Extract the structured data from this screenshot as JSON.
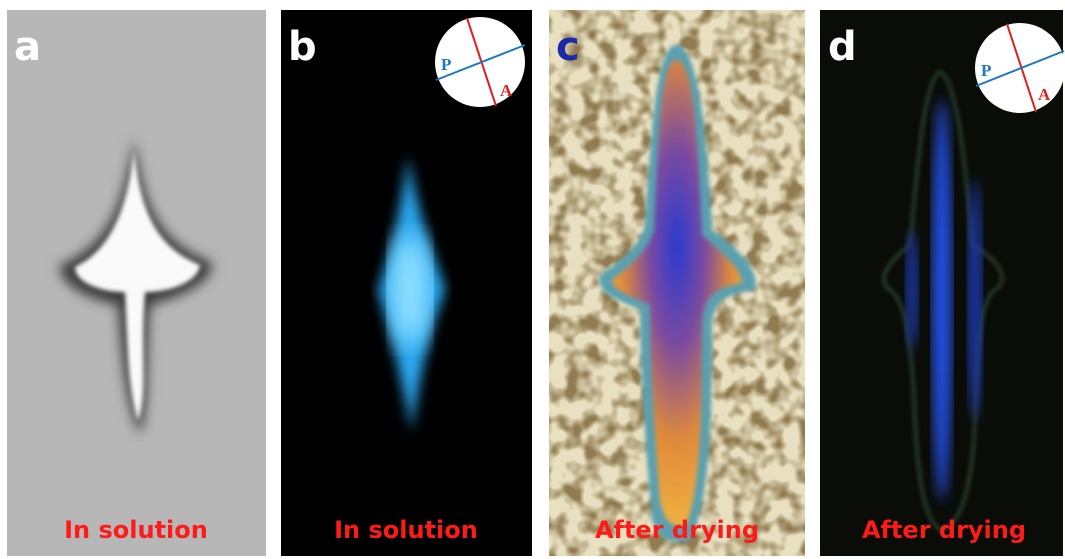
{
  "panels": [
    {
      "letter": "a",
      "caption": "In solution"
    },
    {
      "letter": "b",
      "caption": "In solution",
      "polarizer": {
        "p": "P",
        "a": "A"
      }
    },
    {
      "letter": "c",
      "caption": "After drying"
    },
    {
      "letter": "d",
      "caption": "After drying",
      "polarizer": {
        "p": "P",
        "a": "A"
      }
    }
  ]
}
